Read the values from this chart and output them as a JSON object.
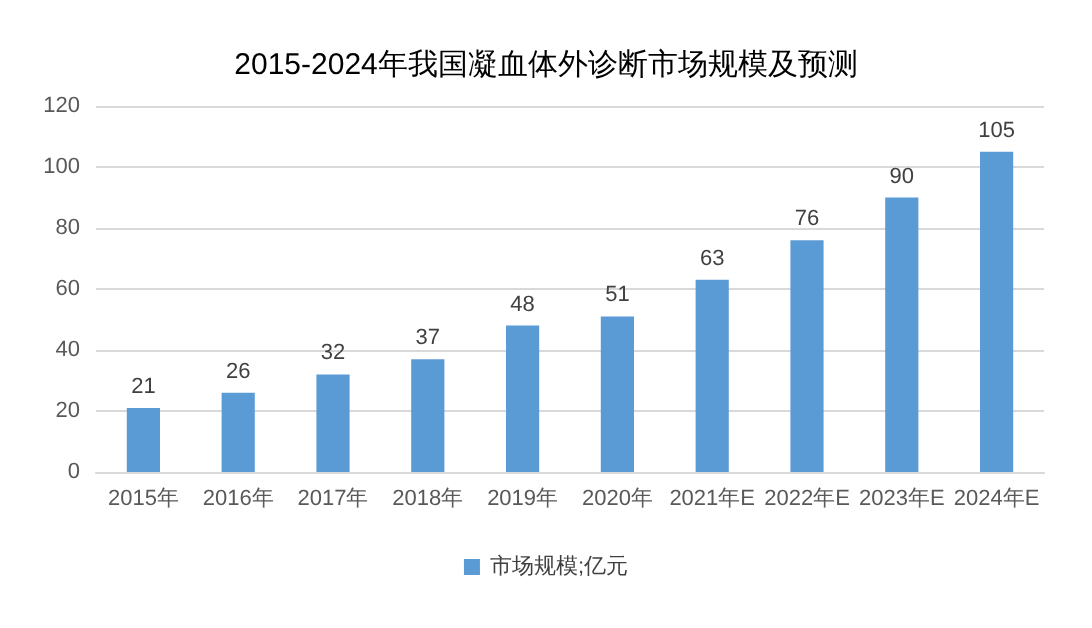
{
  "chart_data": {
    "type": "bar",
    "title": "2015-2024年我国凝血体外诊断市场规模及预测",
    "categories": [
      "2015年",
      "2016年",
      "2017年",
      "2018年",
      "2019年",
      "2020年",
      "2021年E",
      "2022年E",
      "2023年E",
      "2024年E"
    ],
    "series": [
      {
        "name": "市场规模;亿元",
        "color": "#5b9bd5",
        "values": [
          21,
          26,
          32,
          37,
          48,
          51,
          63,
          76,
          90,
          105
        ]
      }
    ],
    "ylim": [
      0,
      120
    ],
    "yticks": [
      0,
      20,
      40,
      60,
      80,
      100,
      120
    ],
    "grid": "y",
    "legend": "bottom",
    "data_labels": true
  }
}
